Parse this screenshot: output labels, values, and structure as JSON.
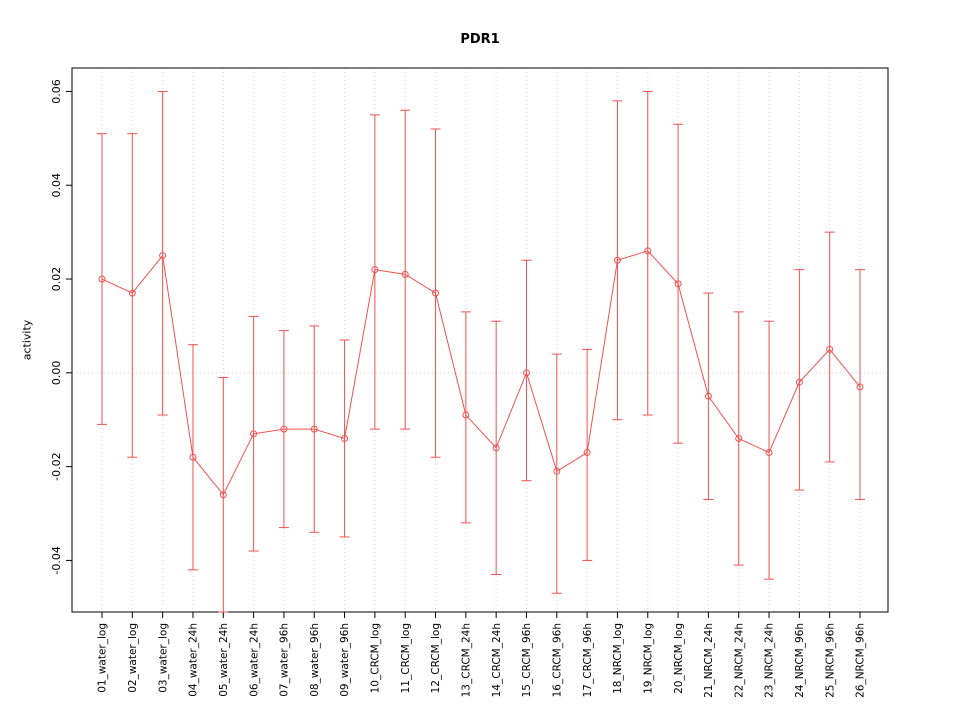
{
  "chart_data": {
    "type": "line",
    "title": "PDR1",
    "ylabel": "activity",
    "xlabel": "",
    "legend_position": "none",
    "grid": "vertical dotted gridline at each category; dotted horizontal line at y=0",
    "categories": [
      "01_water_log",
      "02_water_log",
      "03_water_log",
      "04_water_24h",
      "05_water_24h",
      "06_water_24h",
      "07_water_96h",
      "08_water_96h",
      "09_water_96h",
      "10_CRCM_log",
      "11_CRCM_log",
      "12_CRCM_log",
      "13_CRCM_24h",
      "14_CRCM_24h",
      "15_CRCM_96h",
      "16_CRCM_96h",
      "17_CRCM_96h",
      "18_NRCM_log",
      "19_NRCM_log",
      "20_NRCM_log",
      "21_NRCM_24h",
      "22_NRCM_24h",
      "23_NRCM_24h",
      "24_NRCM_96h",
      "25_NRCM_96h",
      "26_NRCM_96h"
    ],
    "series": [
      {
        "values": [
          0.02,
          0.017,
          0.025,
          -0.018,
          -0.026,
          -0.013,
          -0.012,
          -0.012,
          -0.014,
          0.022,
          0.021,
          0.017,
          -0.009,
          -0.016,
          0.0,
          -0.021,
          -0.017,
          0.024,
          0.026,
          0.019,
          -0.005,
          -0.014,
          -0.017,
          -0.002,
          0.005,
          -0.003
        ],
        "upper": [
          0.051,
          0.051,
          0.06,
          0.006,
          -0.001,
          0.012,
          0.009,
          0.01,
          0.007,
          0.055,
          0.056,
          0.052,
          0.013,
          0.011,
          0.024,
          0.004,
          0.005,
          0.058,
          0.06,
          0.053,
          0.017,
          0.013,
          0.011,
          0.022,
          0.03,
          0.022
        ],
        "lower": [
          -0.011,
          -0.018,
          -0.009,
          -0.042,
          -0.051,
          -0.038,
          -0.033,
          -0.034,
          -0.035,
          -0.012,
          -0.012,
          -0.018,
          -0.032,
          -0.043,
          -0.023,
          -0.047,
          -0.04,
          -0.01,
          -0.009,
          -0.015,
          -0.027,
          -0.041,
          -0.044,
          -0.025,
          -0.019,
          -0.027
        ]
      }
    ],
    "ylim": [
      -0.051,
      0.065
    ],
    "yticks": [
      -0.04,
      -0.02,
      0.0,
      0.02,
      0.04,
      0.06
    ],
    "colors": {
      "series": "#ef5350",
      "grid": "#d8d8d8",
      "axis": "#000000",
      "background": "#ffffff"
    }
  }
}
